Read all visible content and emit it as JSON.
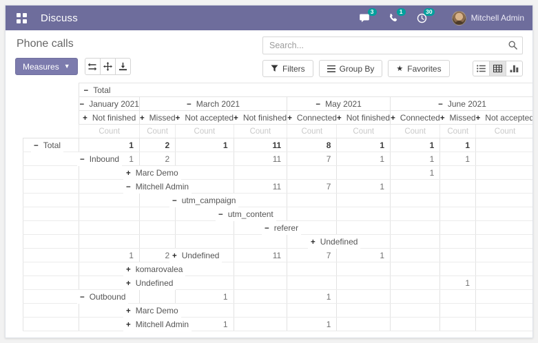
{
  "theme": {
    "topbar_color": "#6e6d9c",
    "primary_color": "#7c7bad",
    "badge_color": "#00a09d"
  },
  "topbar": {
    "app_name": "Discuss",
    "apps_icon": "apps-grid-icon",
    "tray": [
      {
        "icon": "chat-bubble-icon",
        "count": "3"
      },
      {
        "icon": "phone-icon",
        "count": "1"
      },
      {
        "icon": "clock-icon",
        "count": "30"
      }
    ],
    "user_name": "Mitchell Admin"
  },
  "controls": {
    "title": "Phone calls",
    "measures_label": "Measures",
    "tool_icons": [
      "swap-axes-icon",
      "expand-all-icon",
      "download-icon"
    ],
    "search_placeholder": "Search...",
    "filters_label": "Filters",
    "group_by_label": "Group By",
    "favorites_label": "Favorites",
    "view_switcher": [
      "list-view-icon",
      "pivot-view-icon",
      "chart-view-icon"
    ],
    "active_view": "pivot-view-icon"
  },
  "pivot": {
    "total_label": "Total",
    "measure_label": "Count",
    "col_groups": [
      {
        "label": "January 2021",
        "state": "expanded",
        "cols": [
          "Not finished"
        ]
      },
      {
        "label": "March 2021",
        "state": "expanded",
        "cols": [
          "Missed",
          "Not accepted",
          "Not finished"
        ]
      },
      {
        "label": "May 2021",
        "state": "expanded",
        "cols": [
          "Connected",
          "Not finished"
        ]
      },
      {
        "label": "June 2021",
        "state": "expanded",
        "cols": [
          "Connected",
          "Missed",
          "Not accepted"
        ]
      }
    ],
    "rows": [
      {
        "label": "Total",
        "level": 0,
        "state": "expanded",
        "bold": true,
        "values": [
          "1",
          "2",
          "1",
          "11",
          "8",
          "1",
          "1",
          "1",
          ""
        ]
      },
      {
        "label": "Inbound",
        "level": 1,
        "state": "expanded",
        "values": [
          "1",
          "2",
          "",
          "11",
          "7",
          "1",
          "1",
          "1",
          ""
        ]
      },
      {
        "label": "Marc Demo",
        "level": 2,
        "state": "collapsed",
        "values": [
          "",
          "",
          "",
          "",
          "",
          "",
          "1",
          "",
          ""
        ]
      },
      {
        "label": "Mitchell Admin",
        "level": 2,
        "state": "expanded",
        "values": [
          "1",
          "2",
          "",
          "11",
          "7",
          "1",
          "",
          "",
          ""
        ]
      },
      {
        "label": "utm_campaign",
        "level": 3,
        "state": "expanded",
        "values": [
          "",
          "",
          "",
          "",
          "",
          "",
          "",
          "",
          ""
        ]
      },
      {
        "label": "utm_content",
        "level": 4,
        "state": "expanded",
        "values": [
          "",
          "",
          "",
          "",
          "",
          "",
          "",
          "",
          ""
        ]
      },
      {
        "label": "referer",
        "level": 5,
        "state": "expanded",
        "values": [
          "",
          "",
          "",
          "",
          "",
          "",
          "",
          "",
          ""
        ]
      },
      {
        "label": "Undefined",
        "level": 6,
        "state": "collapsed",
        "values": [
          "",
          "",
          "",
          "",
          "",
          "",
          "",
          "",
          ""
        ]
      },
      {
        "label": "Undefined",
        "level": 3,
        "state": "collapsed",
        "values": [
          "1",
          "2",
          "",
          "11",
          "7",
          "1",
          "",
          "",
          ""
        ]
      },
      {
        "label": "komarovalea",
        "level": 2,
        "state": "collapsed",
        "values": [
          "",
          "",
          "",
          "",
          "",
          "",
          "",
          "",
          ""
        ]
      },
      {
        "label": "Undefined",
        "level": 2,
        "state": "collapsed",
        "values": [
          "",
          "",
          "",
          "",
          "",
          "",
          "",
          "1",
          ""
        ]
      },
      {
        "label": "Outbound",
        "level": 1,
        "state": "expanded",
        "values": [
          "",
          "",
          "1",
          "",
          "1",
          "",
          "",
          "",
          ""
        ]
      },
      {
        "label": "Marc Demo",
        "level": 2,
        "state": "collapsed",
        "values": [
          "",
          "",
          "",
          "",
          "",
          "",
          "",
          "",
          ""
        ]
      },
      {
        "label": "Mitchell Admin",
        "level": 2,
        "state": "collapsed",
        "values": [
          "",
          "",
          "1",
          "",
          "1",
          "",
          "",
          "",
          ""
        ]
      }
    ]
  }
}
